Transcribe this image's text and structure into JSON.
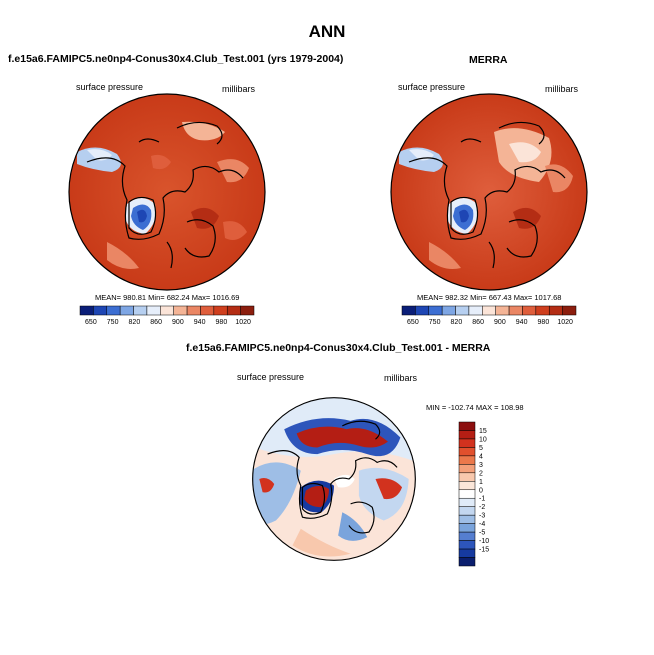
{
  "page_title": "ANN",
  "panels": {
    "model": {
      "heading": "f.e15a6.FAMIPC5.ne0np4-Conus30x4.Club_Test.001 (yrs 1979-2004)",
      "variable": "surface pressure",
      "units": "millibars",
      "stats": "MEAN= 980.81   Min= 682.24   Max= 1016.69"
    },
    "obs": {
      "heading": "MERRA",
      "variable": "surface pressure",
      "units": "millibars",
      "stats": "MEAN= 982.32   Min= 667.43   Max= 1017.68"
    },
    "diff": {
      "heading": "f.e15a6.FAMIPC5.ne0np4-Conus30x4.Club_Test.001 - MERRA",
      "variable": "surface pressure",
      "units": "millibars",
      "stats": "MIN = -102.74  MAX = 108.98"
    }
  },
  "colorbars": {
    "field": {
      "colors": [
        "#0a1e78",
        "#1e46b4",
        "#3c6ed2",
        "#7ea6e4",
        "#b6cff0",
        "#e6eefa",
        "#fbe4d8",
        "#f4b496",
        "#ea8664",
        "#df5e3c",
        "#cf3f1e",
        "#b42d14",
        "#8c1e0e"
      ],
      "labels": [
        "650",
        "750",
        "820",
        "860",
        "900",
        "940",
        "980",
        "1020"
      ]
    },
    "diff": {
      "colors": [
        "#8c0f0f",
        "#b41e14",
        "#d2321e",
        "#e1502d",
        "#eb784b",
        "#f3a07a",
        "#f8c8ad",
        "#fbe6d9",
        "#ffffff",
        "#e0ebf8",
        "#c3d7f0",
        "#9ebee6",
        "#7aa4dc",
        "#557ed0",
        "#2d55bb",
        "#163aa0",
        "#0a1e6e"
      ],
      "labels": [
        "15",
        "10",
        "5",
        "4",
        "3",
        "2",
        "1",
        "0",
        "-1",
        "-2",
        "-3",
        "-4",
        "-5",
        "-10",
        "-15"
      ]
    }
  }
}
